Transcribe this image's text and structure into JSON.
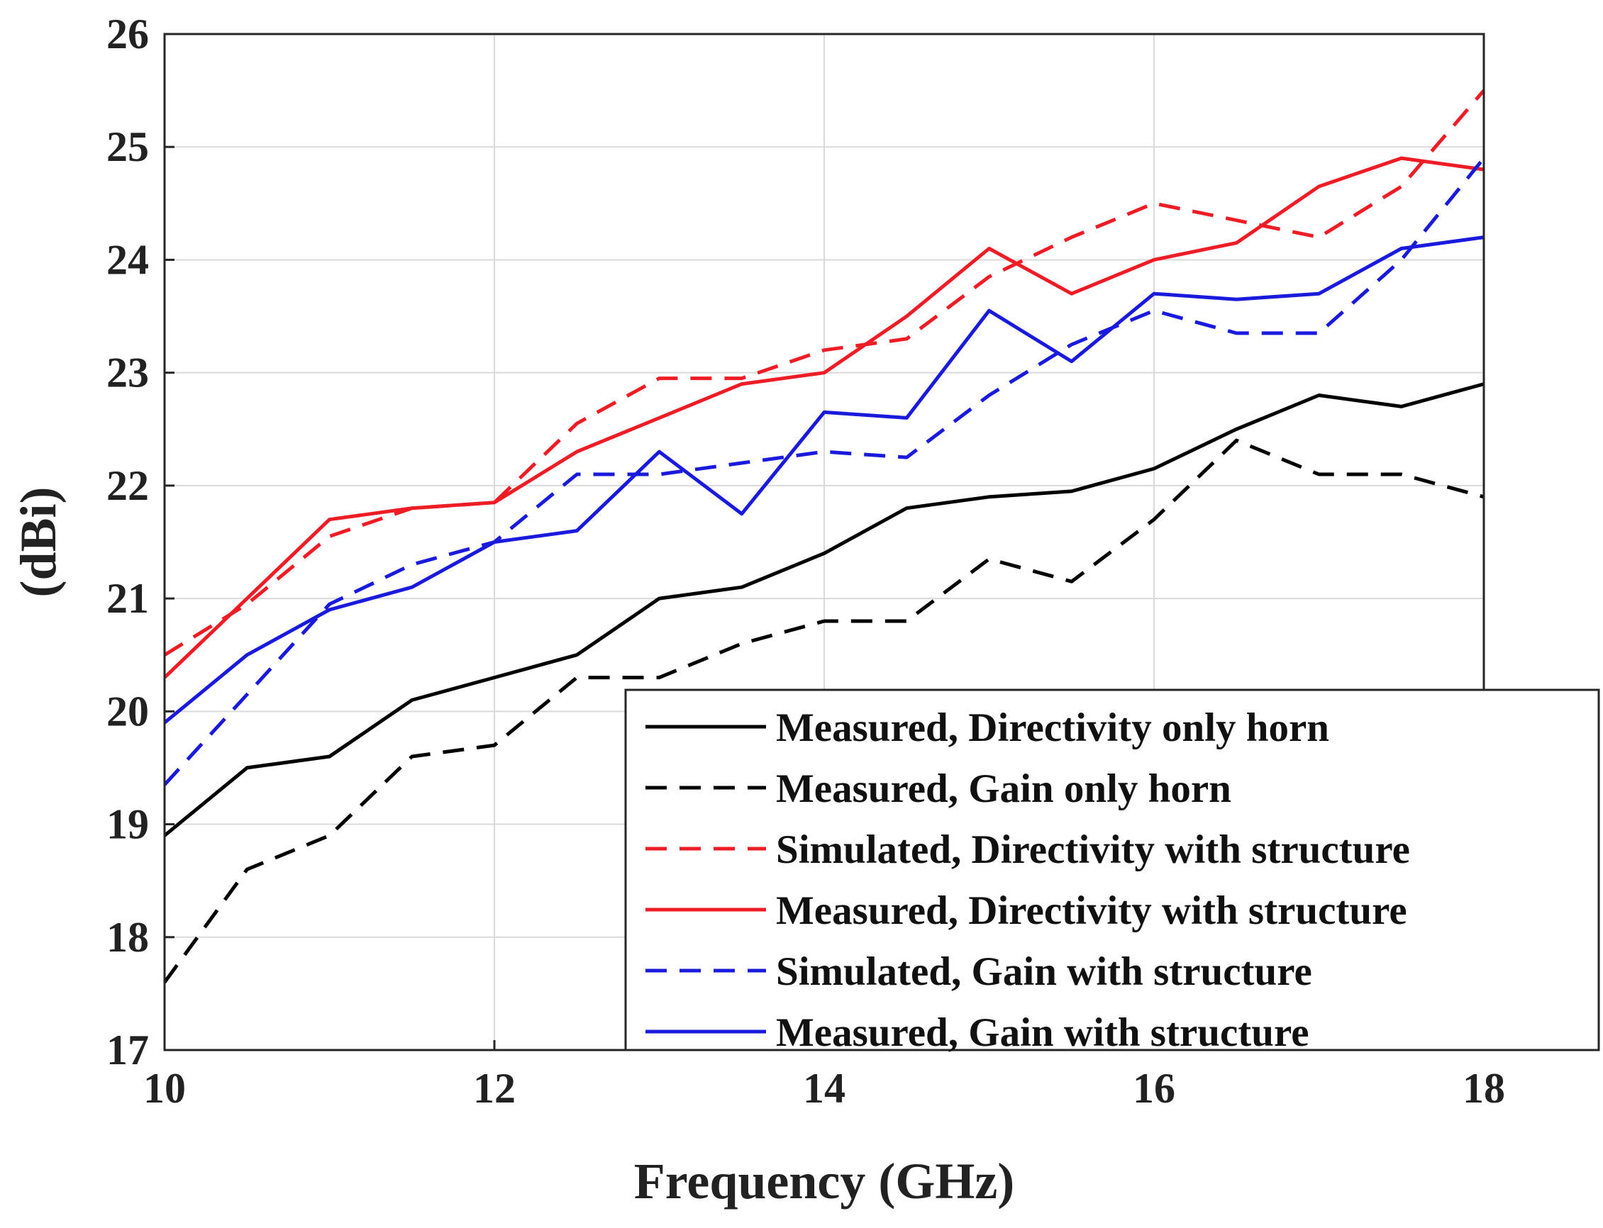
{
  "chart_data": {
    "type": "line",
    "title": "",
    "xlabel": "Frequency (GHz)",
    "ylabel": "(dBi)",
    "xlim": [
      10,
      18
    ],
    "ylim": [
      17,
      26
    ],
    "grid": true,
    "legend_position": "bottom-right",
    "x_ticks": [
      "10",
      "12",
      "14",
      "16",
      "18"
    ],
    "y_ticks": [
      "17",
      "18",
      "19",
      "20",
      "21",
      "22",
      "23",
      "24",
      "25",
      "26"
    ],
    "x": [
      10,
      10.5,
      11,
      11.5,
      12,
      12.5,
      13,
      13.5,
      14,
      14.5,
      15,
      15.5,
      16,
      16.5,
      17,
      17.5,
      18
    ],
    "series": [
      {
        "name": "Measured, Directivity only horn",
        "color": "#000000",
        "dash": "solid",
        "values": [
          18.9,
          19.5,
          19.6,
          20.1,
          20.3,
          20.5,
          21.0,
          21.1,
          21.4,
          21.8,
          21.9,
          21.95,
          22.15,
          22.5,
          22.8,
          22.7,
          22.9
        ]
      },
      {
        "name": "Measured, Gain only horn",
        "color": "#000000",
        "dash": "dashed",
        "values": [
          17.6,
          18.6,
          18.9,
          19.6,
          19.7,
          20.3,
          20.3,
          20.6,
          20.8,
          20.8,
          21.35,
          21.15,
          21.7,
          22.4,
          22.1,
          22.1,
          21.9
        ]
      },
      {
        "name": "Simulated, Directivity with structure",
        "color": "#ee1c25",
        "dash": "dashed",
        "values": [
          20.5,
          20.95,
          21.55,
          21.8,
          21.85,
          22.55,
          22.95,
          22.95,
          23.2,
          23.3,
          23.85,
          24.2,
          24.5,
          24.35,
          24.2,
          24.65,
          25.5
        ]
      },
      {
        "name": "Measured, Directivity with structure",
        "color": "#ee1c25",
        "dash": "solid",
        "values": [
          20.3,
          21.0,
          21.7,
          21.8,
          21.85,
          22.3,
          22.6,
          22.9,
          23.0,
          23.5,
          24.1,
          23.7,
          24.0,
          24.15,
          24.65,
          24.9,
          24.8
        ]
      },
      {
        "name": "Simulated, Gain with structure",
        "color": "#1a1adc",
        "dash": "dashed",
        "values": [
          19.35,
          20.15,
          20.95,
          21.3,
          21.5,
          22.1,
          22.1,
          22.2,
          22.3,
          22.25,
          22.8,
          23.25,
          23.55,
          23.35,
          23.35,
          24.0,
          24.9
        ]
      },
      {
        "name": "Measured, Gain with structure",
        "color": "#1a1adc",
        "dash": "solid",
        "values": [
          19.9,
          20.5,
          20.9,
          21.1,
          21.5,
          21.6,
          22.3,
          21.75,
          22.65,
          22.6,
          23.55,
          23.1,
          23.7,
          23.65,
          23.7,
          24.1,
          24.2
        ]
      }
    ]
  }
}
